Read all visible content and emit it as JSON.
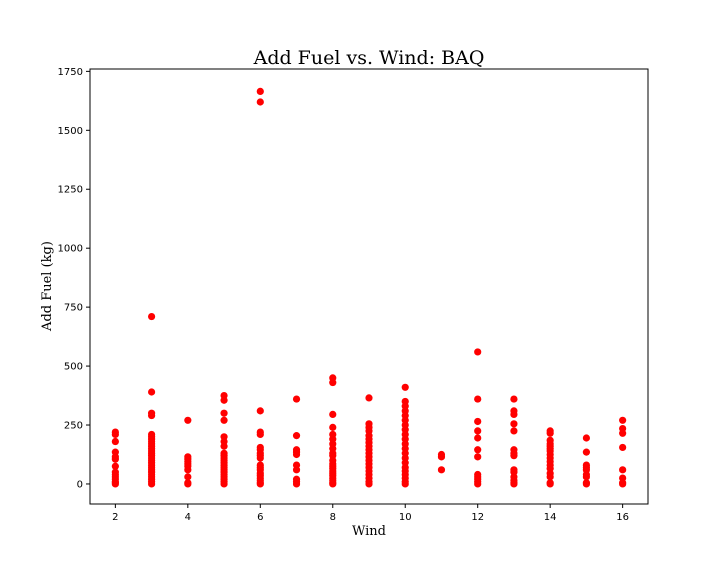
{
  "chart_data": {
    "type": "scatter",
    "title": "Add Fuel vs. Wind: BAQ",
    "xlabel": "Wind",
    "ylabel": "Add Fuel (kg)",
    "xlim": [
      1.3,
      16.7
    ],
    "ylim": [
      -85,
      1760
    ],
    "xticks": [
      2,
      4,
      6,
      8,
      10,
      12,
      14,
      16
    ],
    "yticks": [
      0,
      250,
      500,
      750,
      1000,
      1250,
      1500,
      1750
    ],
    "grid": false,
    "marker_color": "#ff0000",
    "series": [
      {
        "points": [
          [
            2,
            220
          ],
          [
            2,
            210
          ],
          [
            2,
            180
          ],
          [
            2,
            135
          ],
          [
            2,
            115
          ],
          [
            2,
            105
          ],
          [
            2,
            75
          ],
          [
            2,
            50
          ],
          [
            2,
            40
          ],
          [
            2,
            30
          ],
          [
            2,
            20
          ],
          [
            2,
            10
          ],
          [
            2,
            5
          ],
          [
            2,
            0
          ],
          [
            3,
            710
          ],
          [
            3,
            390
          ],
          [
            3,
            300
          ],
          [
            3,
            290
          ],
          [
            3,
            210
          ],
          [
            3,
            200
          ],
          [
            3,
            190
          ],
          [
            3,
            180
          ],
          [
            3,
            170
          ],
          [
            3,
            160
          ],
          [
            3,
            150
          ],
          [
            3,
            140
          ],
          [
            3,
            130
          ],
          [
            3,
            120
          ],
          [
            3,
            110
          ],
          [
            3,
            100
          ],
          [
            3,
            90
          ],
          [
            3,
            80
          ],
          [
            3,
            70
          ],
          [
            3,
            60
          ],
          [
            3,
            50
          ],
          [
            3,
            40
          ],
          [
            3,
            30
          ],
          [
            3,
            20
          ],
          [
            3,
            10
          ],
          [
            3,
            0
          ],
          [
            4,
            270
          ],
          [
            4,
            115
          ],
          [
            4,
            105
          ],
          [
            4,
            95
          ],
          [
            4,
            85
          ],
          [
            4,
            75
          ],
          [
            4,
            60
          ],
          [
            4,
            30
          ],
          [
            4,
            5
          ],
          [
            4,
            0
          ],
          [
            5,
            375
          ],
          [
            5,
            355
          ],
          [
            5,
            300
          ],
          [
            5,
            270
          ],
          [
            5,
            200
          ],
          [
            5,
            180
          ],
          [
            5,
            160
          ],
          [
            5,
            130
          ],
          [
            5,
            120
          ],
          [
            5,
            110
          ],
          [
            5,
            100
          ],
          [
            5,
            90
          ],
          [
            5,
            80
          ],
          [
            5,
            70
          ],
          [
            5,
            60
          ],
          [
            5,
            50
          ],
          [
            5,
            40
          ],
          [
            5,
            30
          ],
          [
            5,
            20
          ],
          [
            5,
            10
          ],
          [
            5,
            0
          ],
          [
            6,
            1665
          ],
          [
            6,
            1620
          ],
          [
            6,
            310
          ],
          [
            6,
            220
          ],
          [
            6,
            210
          ],
          [
            6,
            155
          ],
          [
            6,
            145
          ],
          [
            6,
            130
          ],
          [
            6,
            120
          ],
          [
            6,
            110
          ],
          [
            6,
            80
          ],
          [
            6,
            70
          ],
          [
            6,
            60
          ],
          [
            6,
            45
          ],
          [
            6,
            35
          ],
          [
            6,
            25
          ],
          [
            6,
            15
          ],
          [
            6,
            5
          ],
          [
            6,
            0
          ],
          [
            7,
            360
          ],
          [
            7,
            205
          ],
          [
            7,
            145
          ],
          [
            7,
            135
          ],
          [
            7,
            125
          ],
          [
            7,
            80
          ],
          [
            7,
            60
          ],
          [
            7,
            20
          ],
          [
            7,
            10
          ],
          [
            7,
            0
          ],
          [
            8,
            450
          ],
          [
            8,
            430
          ],
          [
            8,
            295
          ],
          [
            8,
            240
          ],
          [
            8,
            210
          ],
          [
            8,
            190
          ],
          [
            8,
            170
          ],
          [
            8,
            150
          ],
          [
            8,
            130
          ],
          [
            8,
            120
          ],
          [
            8,
            100
          ],
          [
            8,
            85
          ],
          [
            8,
            75
          ],
          [
            8,
            65
          ],
          [
            8,
            55
          ],
          [
            8,
            45
          ],
          [
            8,
            35
          ],
          [
            8,
            25
          ],
          [
            8,
            15
          ],
          [
            8,
            5
          ],
          [
            8,
            0
          ],
          [
            9,
            365
          ],
          [
            9,
            255
          ],
          [
            9,
            240
          ],
          [
            9,
            225
          ],
          [
            9,
            205
          ],
          [
            9,
            190
          ],
          [
            9,
            175
          ],
          [
            9,
            160
          ],
          [
            9,
            145
          ],
          [
            9,
            130
          ],
          [
            9,
            115
          ],
          [
            9,
            100
          ],
          [
            9,
            85
          ],
          [
            9,
            70
          ],
          [
            9,
            55
          ],
          [
            9,
            40
          ],
          [
            9,
            25
          ],
          [
            9,
            10
          ],
          [
            9,
            0
          ],
          [
            10,
            410
          ],
          [
            10,
            350
          ],
          [
            10,
            330
          ],
          [
            10,
            310
          ],
          [
            10,
            290
          ],
          [
            10,
            270
          ],
          [
            10,
            250
          ],
          [
            10,
            230
          ],
          [
            10,
            210
          ],
          [
            10,
            190
          ],
          [
            10,
            170
          ],
          [
            10,
            150
          ],
          [
            10,
            130
          ],
          [
            10,
            110
          ],
          [
            10,
            90
          ],
          [
            10,
            70
          ],
          [
            10,
            55
          ],
          [
            10,
            40
          ],
          [
            10,
            25
          ],
          [
            10,
            10
          ],
          [
            10,
            0
          ],
          [
            11,
            125
          ],
          [
            11,
            115
          ],
          [
            11,
            60
          ],
          [
            12,
            560
          ],
          [
            12,
            360
          ],
          [
            12,
            265
          ],
          [
            12,
            225
          ],
          [
            12,
            195
          ],
          [
            12,
            145
          ],
          [
            12,
            115
          ],
          [
            12,
            40
          ],
          [
            12,
            30
          ],
          [
            12,
            20
          ],
          [
            12,
            10
          ],
          [
            12,
            0
          ],
          [
            13,
            360
          ],
          [
            13,
            310
          ],
          [
            13,
            295
          ],
          [
            13,
            255
          ],
          [
            13,
            225
          ],
          [
            13,
            145
          ],
          [
            13,
            130
          ],
          [
            13,
            120
          ],
          [
            13,
            60
          ],
          [
            13,
            50
          ],
          [
            13,
            30
          ],
          [
            13,
            15
          ],
          [
            13,
            5
          ],
          [
            13,
            0
          ],
          [
            14,
            225
          ],
          [
            14,
            215
          ],
          [
            14,
            185
          ],
          [
            14,
            170
          ],
          [
            14,
            160
          ],
          [
            14,
            150
          ],
          [
            14,
            140
          ],
          [
            14,
            125
          ],
          [
            14,
            110
          ],
          [
            14,
            95
          ],
          [
            14,
            80
          ],
          [
            14,
            65
          ],
          [
            14,
            45
          ],
          [
            14,
            30
          ],
          [
            14,
            5
          ],
          [
            14,
            0
          ],
          [
            15,
            195
          ],
          [
            15,
            135
          ],
          [
            15,
            80
          ],
          [
            15,
            70
          ],
          [
            15,
            60
          ],
          [
            15,
            40
          ],
          [
            15,
            30
          ],
          [
            15,
            5
          ],
          [
            15,
            0
          ],
          [
            16,
            270
          ],
          [
            16,
            235
          ],
          [
            16,
            215
          ],
          [
            16,
            155
          ],
          [
            16,
            60
          ],
          [
            16,
            25
          ],
          [
            16,
            5
          ],
          [
            16,
            0
          ]
        ]
      }
    ]
  }
}
